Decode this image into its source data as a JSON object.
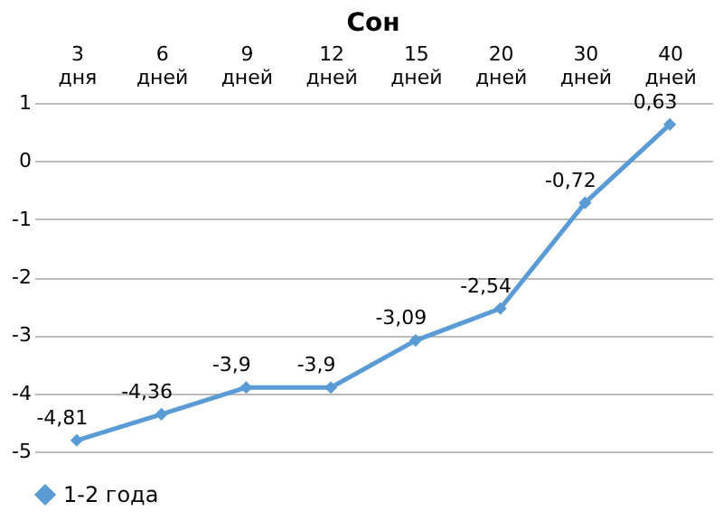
{
  "chart_data": {
    "type": "line",
    "title": "Сон",
    "categories": [
      "3 дня",
      "6 дней",
      "9 дней",
      "12 дней",
      "15 дней",
      "20 дней",
      "30 дней",
      "40 дней"
    ],
    "series": [
      {
        "name": "1-2 года",
        "color": "#5b9bd5",
        "values": [
          -4.81,
          -4.36,
          -3.9,
          -3.9,
          -3.09,
          -2.54,
          -0.72,
          0.63
        ],
        "value_labels": [
          "-4,81",
          "-4,36",
          "-3,9",
          "-3,9",
          "-3,09",
          "-2,54",
          "-0,72",
          "0,63"
        ]
      }
    ],
    "ylim": [
      -5,
      1
    ],
    "yticks": [
      -5,
      -4,
      -3,
      -2,
      -1,
      0,
      1
    ],
    "grid": "y",
    "legend": "bottom",
    "marker": "diamond",
    "line_style": "solid"
  }
}
